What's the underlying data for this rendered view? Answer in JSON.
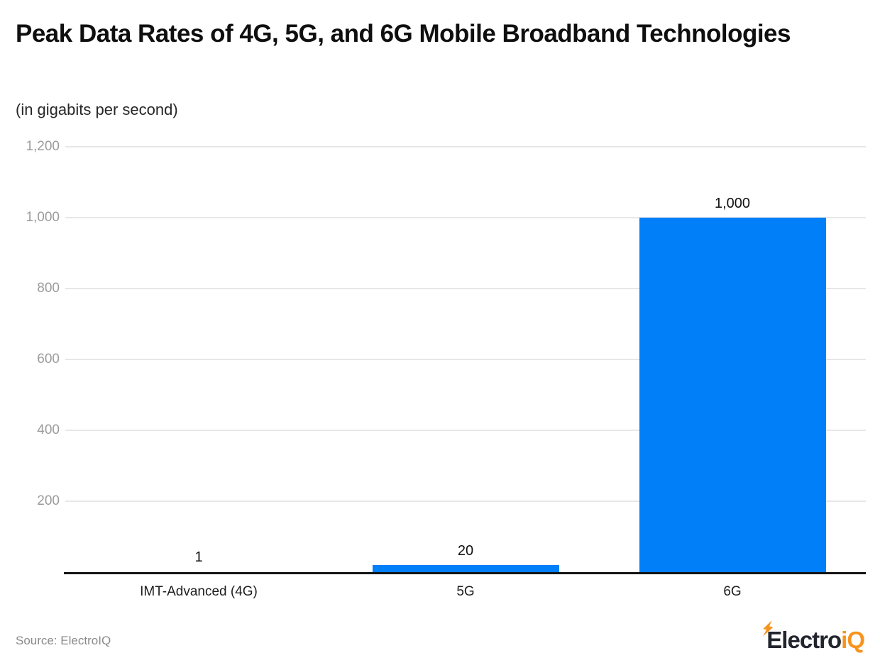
{
  "header": {
    "title": "Peak Data Rates of 4G, 5G, and 6G Mobile Broadband Technologies",
    "subtitle": "(in gigabits per second)"
  },
  "footer": {
    "source": "Source: ElectroIQ",
    "logo": {
      "part_dark": "Electro",
      "part_orange": "iQ",
      "icon": "lightning-bolt-icon"
    }
  },
  "colors": {
    "bar": "#007ff9",
    "grid": "#e7e7e7",
    "axis": "#141414",
    "tick_label": "#9b9b9b",
    "logo_dark": "#22242e",
    "logo_orange": "#f7941d"
  },
  "chart_data": {
    "type": "bar",
    "title": "Peak Data Rates of 4G, 5G, and 6G Mobile Broadband Technologies",
    "unit": "gigabits per second",
    "categories": [
      "IMT-Advanced (4G)",
      "5G",
      "6G"
    ],
    "values": [
      1,
      20,
      1000
    ],
    "value_labels": [
      "1",
      "20",
      "1,000"
    ],
    "ylim": [
      0,
      1200
    ],
    "yticks": [
      200,
      400,
      600,
      800,
      1000,
      1200
    ],
    "ytick_labels": [
      "200",
      "400",
      "600",
      "800",
      "1,000",
      "1,200"
    ],
    "grid": true,
    "legend": false,
    "xlabel": "",
    "ylabel": ""
  }
}
